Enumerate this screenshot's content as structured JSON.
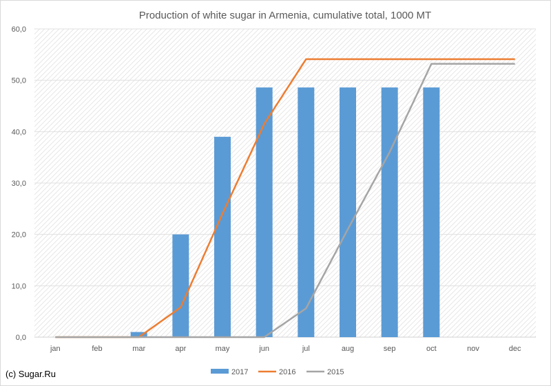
{
  "chart_data": {
    "type": "bar",
    "title": "Production of white sugar in Armenia, cumulative total, 1000 MT",
    "xlabel": "",
    "ylabel": "",
    "categories": [
      "jan",
      "feb",
      "mar",
      "apr",
      "may",
      "jun",
      "jul",
      "aug",
      "sep",
      "oct",
      "nov",
      "dec"
    ],
    "ylim": [
      0,
      60
    ],
    "yticks": [
      0,
      10,
      20,
      30,
      40,
      50,
      60
    ],
    "ytick_labels": [
      "0,0",
      "10,0",
      "20,0",
      "30,0",
      "40,0",
      "50,0",
      "60,0"
    ],
    "grid": true,
    "legend_position": "bottom",
    "series": [
      {
        "name": "2017",
        "kind": "bar",
        "color": "#5b9bd5",
        "values": [
          0,
          0,
          1.0,
          20.0,
          39.0,
          48.6,
          48.6,
          48.6,
          48.6,
          48.6,
          null,
          null
        ]
      },
      {
        "name": "2016",
        "kind": "line",
        "color": "#ed7d31",
        "values": [
          0,
          0,
          0,
          5.8,
          24.0,
          41.5,
          54.1,
          54.1,
          54.1,
          54.1,
          54.1,
          54.1
        ]
      },
      {
        "name": "2015",
        "kind": "line",
        "color": "#a5a5a5",
        "values": [
          0,
          0,
          0,
          0,
          0,
          0,
          5.6,
          21.0,
          36.0,
          53.2,
          53.2,
          53.2
        ]
      }
    ]
  },
  "footer": {
    "copyright": "(c) Sugar.Ru"
  }
}
